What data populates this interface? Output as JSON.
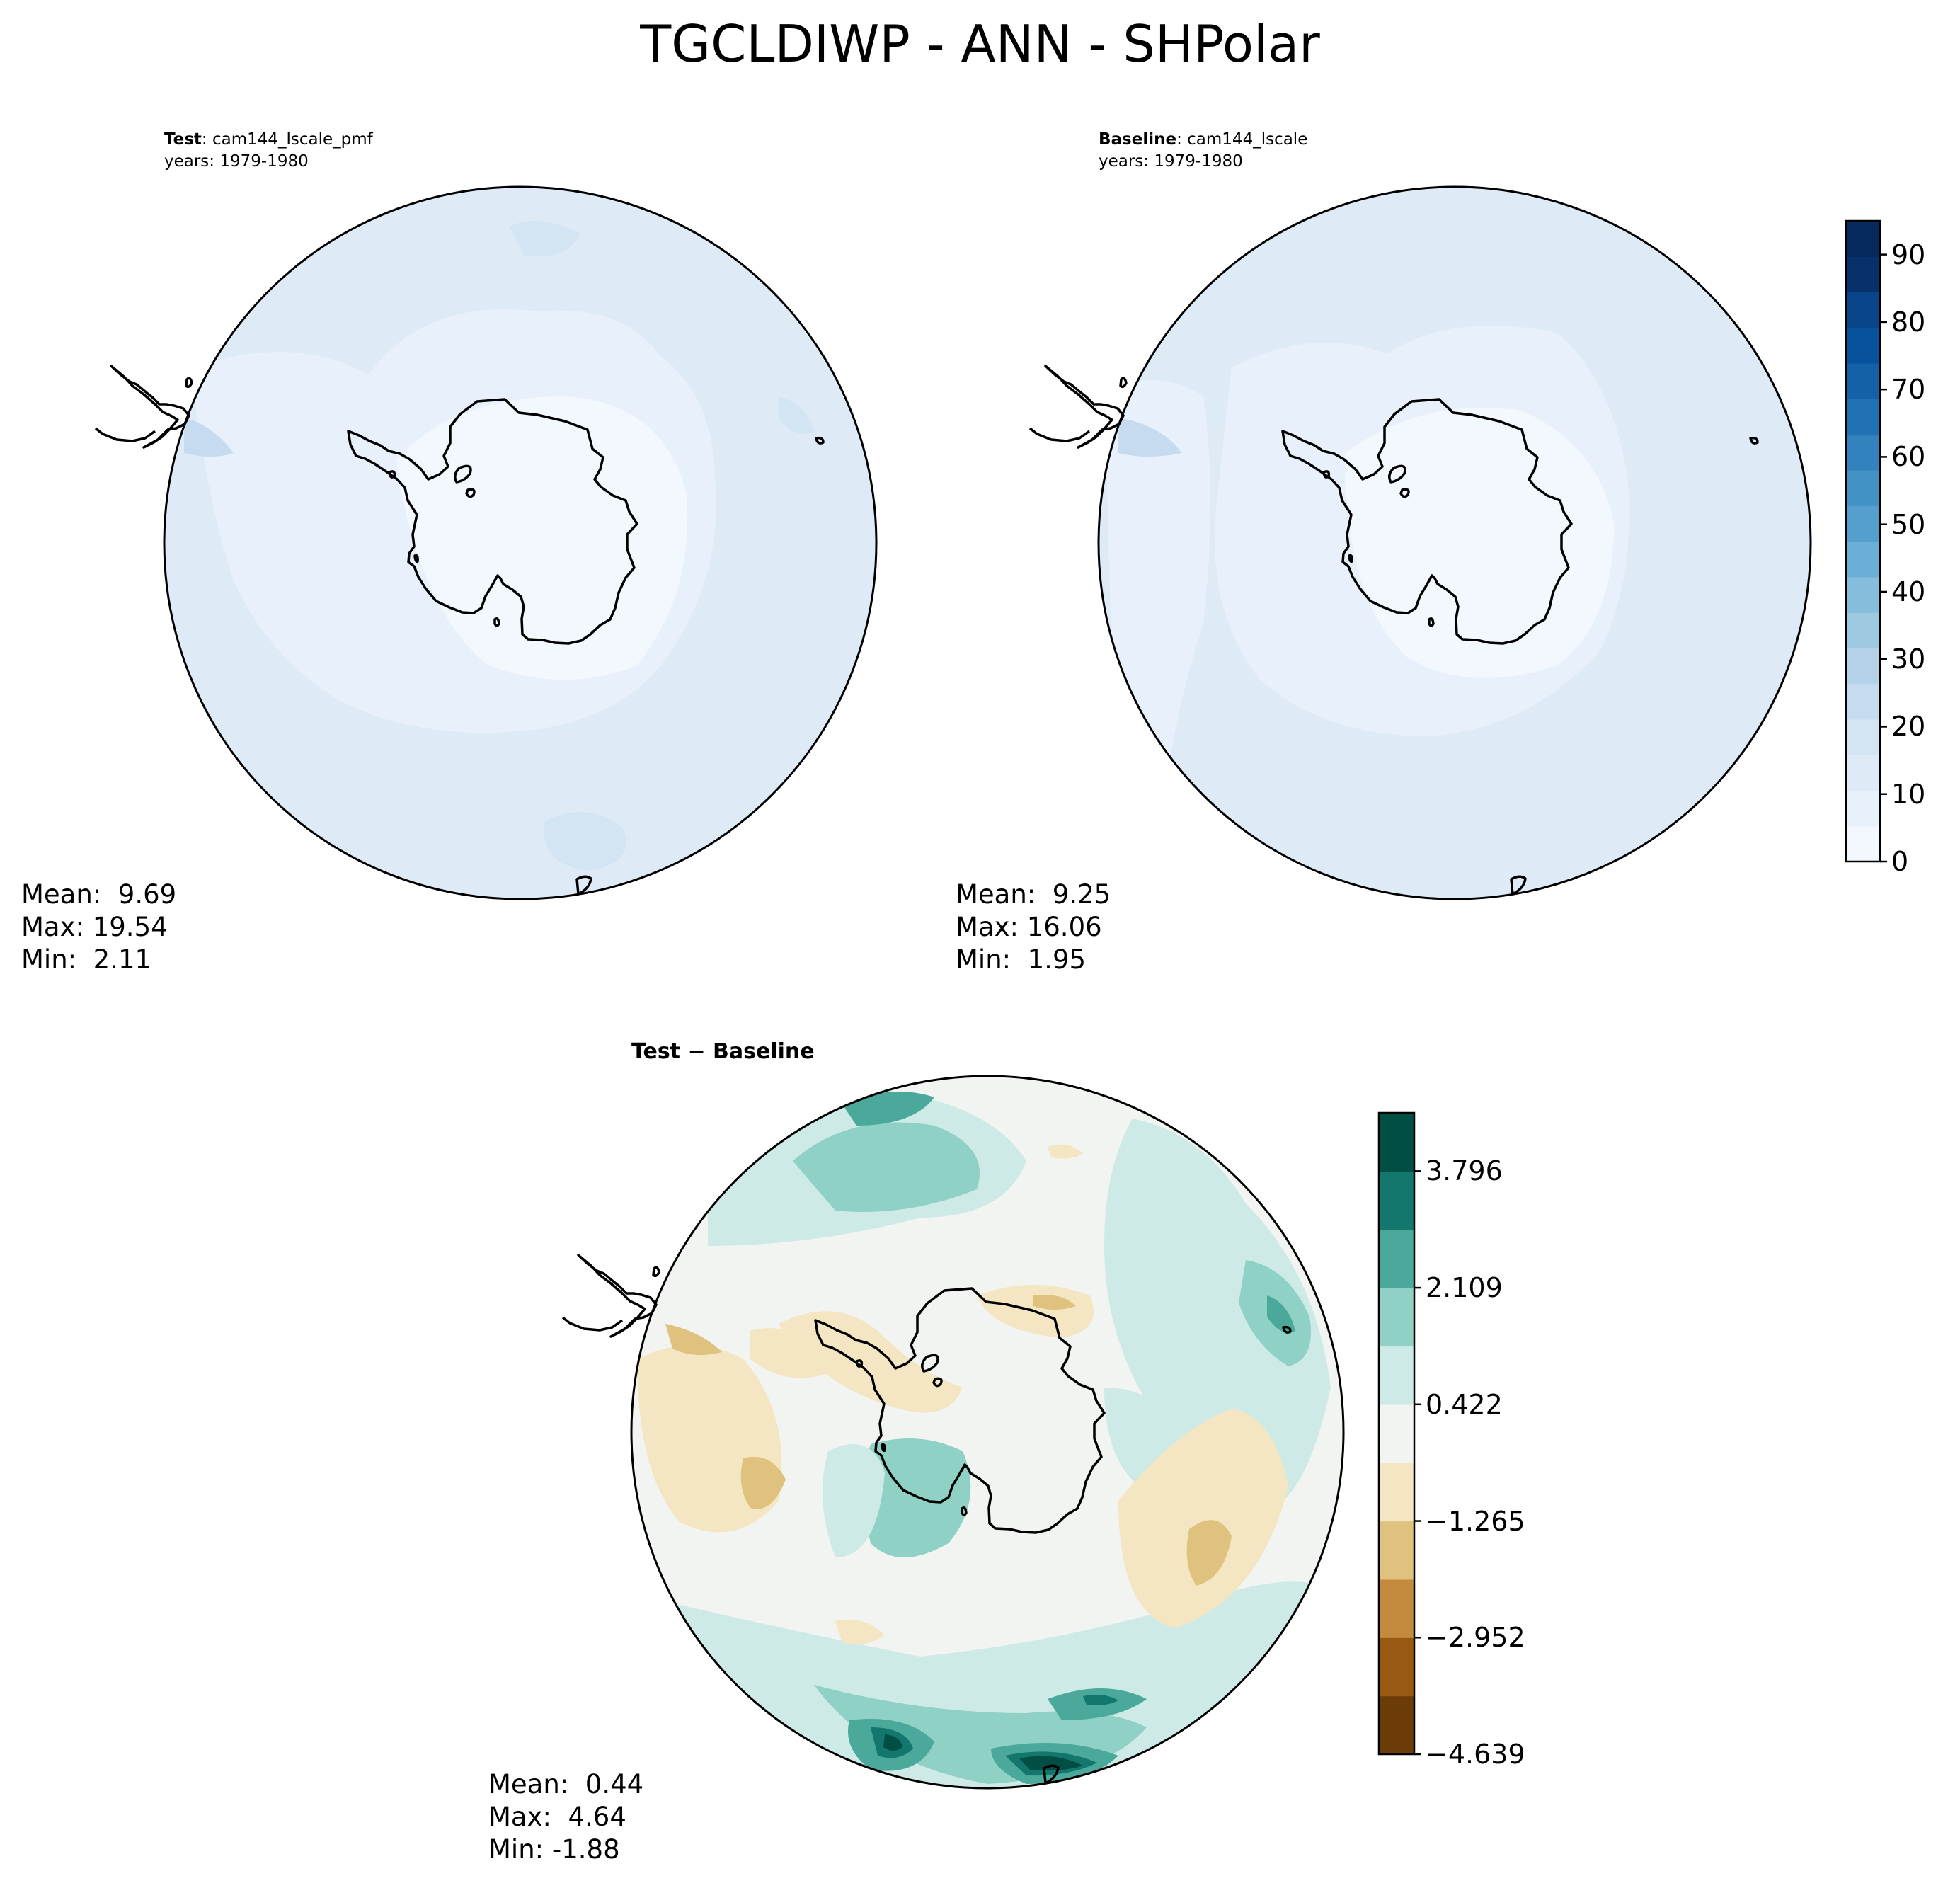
{
  "figure": {
    "title": "TGCLDIWP - ANN - SHPolar"
  },
  "panels": {
    "test": {
      "label_bold": "Test",
      "label_rest": ": cam144_lscale_pmf",
      "years": "years: 1979-1980",
      "mean": "Mean:  9.69",
      "max": "Max: 19.54",
      "min": "Min:  2.11"
    },
    "baseline": {
      "label_bold": "Baseline",
      "label_rest": ": cam144_lscale",
      "years": "years: 1979-1980",
      "mean": "Mean:  9.25",
      "max": "Max: 16.06",
      "min": "Min:  1.95"
    },
    "diff": {
      "title": "Test − Baseline",
      "mean": "Mean:  0.44",
      "max": "Max:  4.64",
      "min": "Min: -1.88"
    }
  },
  "colorbars": {
    "main": {
      "ticks": [
        "0",
        "10",
        "20",
        "30",
        "40",
        "50",
        "60",
        "70",
        "80",
        "90"
      ],
      "colors": [
        "#f3f8fe",
        "#e8f1fb",
        "#deebf7",
        "#d3e4f3",
        "#c6dbef",
        "#b4d3e9",
        "#9ecae1",
        "#86bcdc",
        "#6baed6",
        "#559fce",
        "#4292c6",
        "#3182bd",
        "#2171b5",
        "#1461a8",
        "#08519c",
        "#08458b",
        "#08306b",
        "#062a5e"
      ]
    },
    "diff": {
      "ticks": [
        "−4.639",
        "−2.952",
        "−1.265",
        "0.422",
        "2.109",
        "3.796"
      ],
      "colors": [
        "#6b3c07",
        "#985a12",
        "#c48a3e",
        "#dfc27d",
        "#f4e6c3",
        "#f2f4f2",
        "#cdeae6",
        "#8fd1c5",
        "#4aa99a",
        "#13776e",
        "#014e45"
      ]
    }
  },
  "chart_data": [
    {
      "type": "heatmap",
      "title": "Test : cam144_lscale_pmf",
      "subtitle": "years: 1979-1980",
      "projection": "south polar stereographic",
      "colormap": "Blues",
      "clim": [
        0,
        95
      ],
      "stats": {
        "mean": 9.69,
        "max": 19.54,
        "min": 2.11
      },
      "field_description_levels": [
        2.11,
        9.69,
        19.54
      ]
    },
    {
      "type": "heatmap",
      "title": "Baseline : cam144_lscale",
      "subtitle": "years: 1979-1980",
      "projection": "south polar stereographic",
      "colormap": "Blues",
      "clim": [
        0,
        95
      ],
      "colorbar_ticks": [
        0,
        10,
        20,
        30,
        40,
        50,
        60,
        70,
        80,
        90
      ],
      "stats": {
        "mean": 9.25,
        "max": 16.06,
        "min": 1.95
      }
    },
    {
      "type": "heatmap",
      "title": "Test − Baseline",
      "projection": "south polar stereographic",
      "colormap": "BrBG",
      "clim": [
        -4.639,
        4.639
      ],
      "colorbar_ticks": [
        -4.639,
        -2.952,
        -1.265,
        0.422,
        2.109,
        3.796
      ],
      "stats": {
        "mean": 0.44,
        "max": 4.64,
        "min": -1.88
      }
    }
  ]
}
